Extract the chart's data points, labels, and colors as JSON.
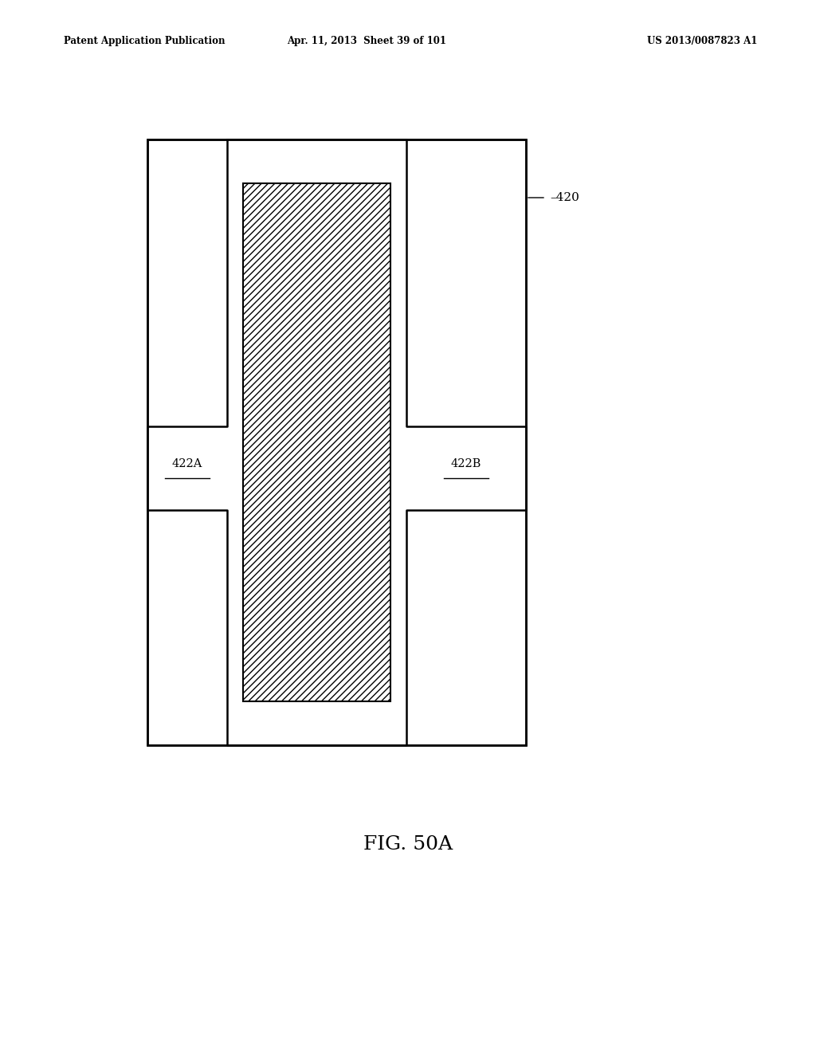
{
  "fig_width": 10.24,
  "fig_height": 13.2,
  "dpi": 100,
  "bg_color": "#ffffff",
  "header_left": "Patent Application Publication",
  "header_mid": "Apr. 11, 2013  Sheet 39 of 101",
  "header_right": "US 2013/0087823 A1",
  "caption": "FIG. 50A",
  "label_420": "420",
  "label_422A": "422A",
  "label_422B": "422B"
}
